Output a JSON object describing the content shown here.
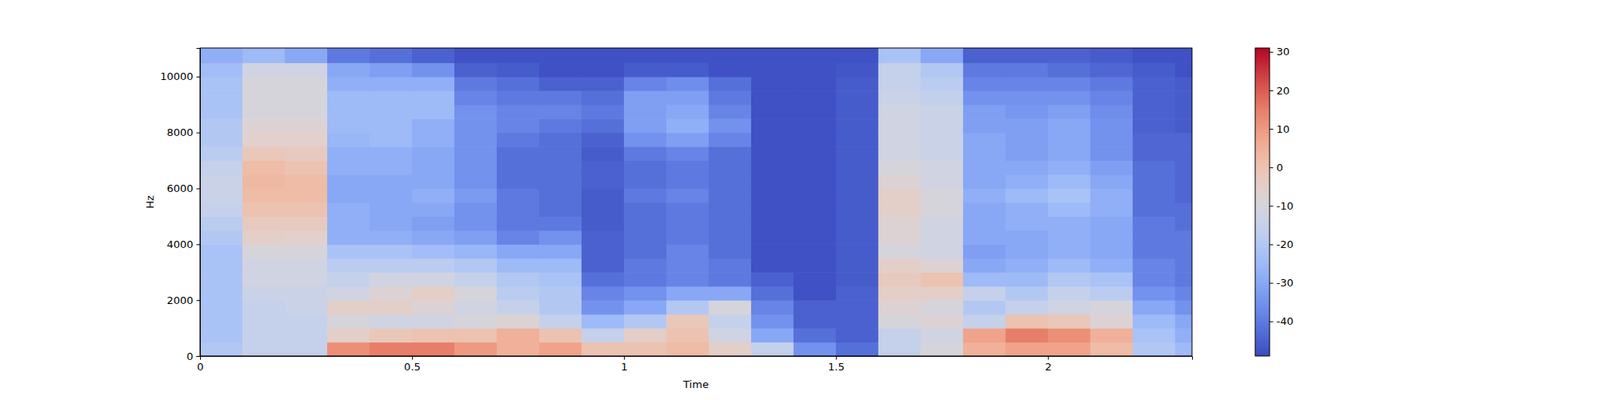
{
  "chart_data": {
    "type": "heatmap",
    "xlabel": "Time",
    "ylabel": "Hz",
    "xlim": [
      0,
      2.34
    ],
    "xticks": [
      0,
      0.5,
      1,
      1.5,
      2
    ],
    "ylim": [
      0,
      11025
    ],
    "yticks": [
      0,
      2000,
      4000,
      6000,
      8000,
      10000
    ],
    "x_edges": [
      0,
      0.1,
      0.2,
      0.3,
      0.4,
      0.5,
      0.6,
      0.7,
      0.8,
      0.9,
      1,
      1.1,
      1.2,
      1.3,
      1.4,
      1.5,
      1.6,
      1.7,
      1.8,
      1.9,
      2,
      2.1,
      2.2,
      2.3,
      2.34
    ],
    "y_edges": [
      0,
      500,
      1000,
      1500,
      2000,
      2500,
      3000,
      3500,
      4000,
      4500,
      5000,
      5500,
      6000,
      6500,
      7000,
      7500,
      8000,
      8500,
      9000,
      9500,
      10000,
      10500,
      11025
    ],
    "z": [
      [
        -20,
        -22,
        -22,
        -22,
        -22,
        -22,
        -22,
        -22,
        -20,
        -18,
        -15,
        -14,
        -14,
        -15,
        -18,
        -20,
        -20,
        -22,
        -22,
        -22,
        -24,
        -28
      ],
      [
        -15,
        -15,
        -15,
        -15,
        -14,
        -12,
        -12,
        -10,
        -5,
        -3,
        0,
        2,
        3,
        2,
        -2,
        -6,
        -8,
        -10,
        -10,
        -10,
        -12,
        -25
      ],
      [
        -15,
        -15,
        -15,
        -14,
        -14,
        -12,
        -12,
        -10,
        -6,
        -3,
        0,
        2,
        2,
        0,
        -3,
        -6,
        -8,
        -10,
        -10,
        -10,
        -12,
        -30
      ],
      [
        12,
        -5,
        -10,
        -5,
        -12,
        -15,
        -18,
        -22,
        -28,
        -28,
        -28,
        -30,
        -30,
        -28,
        -28,
        -26,
        -25,
        -25,
        -25,
        -28,
        -30,
        -40
      ],
      [
        15,
        -2,
        -12,
        -5,
        -8,
        -12,
        -18,
        -22,
        -28,
        -30,
        -30,
        -30,
        -30,
        -28,
        -28,
        -25,
        -25,
        -25,
        -25,
        -28,
        -32,
        -42
      ],
      [
        15,
        0,
        -12,
        -8,
        -5,
        -12,
        -18,
        -24,
        -30,
        -32,
        -30,
        -28,
        -30,
        -30,
        -30,
        -28,
        -28,
        -25,
        -25,
        -28,
        -35,
        -45
      ],
      [
        10,
        0,
        -10,
        -12,
        -10,
        -15,
        -20,
        -26,
        -32,
        -35,
        -35,
        -33,
        -35,
        -35,
        -35,
        -35,
        -35,
        -35,
        -38,
        -40,
        -45,
        -48
      ],
      [
        5,
        5,
        -8,
        -15,
        -18,
        -20,
        -25,
        -30,
        -38,
        -40,
        -40,
        -40,
        -42,
        -42,
        -42,
        -40,
        -38,
        -38,
        -40,
        -42,
        -46,
        -48
      ],
      [
        8,
        0,
        -15,
        -20,
        -20,
        -22,
        -25,
        -30,
        -35,
        -40,
        -42,
        -42,
        -42,
        -42,
        -42,
        -42,
        -40,
        -38,
        -40,
        -45,
        -48,
        -48
      ],
      [
        0,
        -15,
        -25,
        -35,
        -38,
        -42,
        -45,
        -45,
        -45,
        -46,
        -46,
        -46,
        -45,
        -45,
        -46,
        -45,
        -42,
        -40,
        -42,
        -45,
        -48,
        -48
      ],
      [
        0,
        -5,
        -20,
        -30,
        -35,
        -40,
        -40,
        -42,
        -42,
        -42,
        -42,
        -40,
        -42,
        -42,
        -40,
        -35,
        -32,
        -32,
        -32,
        -38,
        -46,
        -48
      ],
      [
        2,
        0,
        -2,
        -20,
        -30,
        -38,
        -38,
        -38,
        -40,
        -40,
        -40,
        -38,
        -40,
        -40,
        -38,
        -32,
        -28,
        -30,
        -32,
        -36,
        -46,
        -48
      ],
      [
        -5,
        -12,
        -15,
        -10,
        -30,
        -40,
        -40,
        -42,
        -42,
        -42,
        -42,
        -42,
        -42,
        -42,
        -42,
        -38,
        -35,
        -38,
        -40,
        -42,
        -48,
        -48
      ],
      [
        -15,
        -30,
        -35,
        -38,
        -42,
        -45,
        -48,
        -48,
        -48,
        -48,
        -48,
        -48,
        -48,
        -48,
        -48,
        -48,
        -48,
        -48,
        -48,
        -48,
        -48,
        -48
      ],
      [
        -35,
        -42,
        -45,
        -45,
        -48,
        -48,
        -48,
        -48,
        -48,
        -48,
        -48,
        -48,
        -48,
        -48,
        -48,
        -48,
        -48,
        -48,
        -48,
        -48,
        -48,
        -48
      ],
      [
        -42,
        -45,
        -45,
        -45,
        -45,
        -46,
        -46,
        -46,
        -46,
        -46,
        -46,
        -46,
        -46,
        -46,
        -46,
        -46,
        -46,
        -46,
        -46,
        -46,
        -47,
        -48
      ],
      [
        -15,
        -15,
        -10,
        -8,
        -5,
        -3,
        -5,
        -10,
        -8,
        -8,
        -5,
        -5,
        -8,
        -10,
        -12,
        -12,
        -12,
        -12,
        -14,
        -15,
        -15,
        -22
      ],
      [
        -10,
        -12,
        -8,
        -10,
        -5,
        0,
        -8,
        -12,
        -12,
        -12,
        -10,
        -10,
        -12,
        -12,
        -14,
        -14,
        -14,
        -14,
        -16,
        -18,
        -20,
        -30
      ],
      [
        5,
        8,
        -15,
        -20,
        -15,
        -25,
        -30,
        -32,
        -30,
        -30,
        -30,
        -28,
        -30,
        -30,
        -30,
        -30,
        -32,
        -32,
        -35,
        -38,
        -40,
        -45
      ],
      [
        8,
        15,
        0,
        -15,
        -20,
        -25,
        -28,
        -30,
        -30,
        -28,
        -28,
        -25,
        -28,
        -30,
        -32,
        -32,
        -32,
        -34,
        -35,
        -38,
        -40,
        -45
      ],
      [
        8,
        12,
        -2,
        -12,
        -15,
        -20,
        -25,
        -28,
        -28,
        -28,
        -25,
        -22,
        -25,
        -28,
        -30,
        -30,
        -30,
        -32,
        -35,
        -38,
        -42,
        -45
      ],
      [
        2,
        5,
        -8,
        -10,
        -18,
        -22,
        -28,
        -30,
        -30,
        -30,
        -28,
        -28,
        -30,
        -32,
        -35,
        -35,
        -35,
        -36,
        -38,
        -40,
        -44,
        -46
      ],
      [
        -20,
        -22,
        -25,
        -30,
        -35,
        -38,
        -38,
        -40,
        -40,
        -40,
        -42,
        -42,
        -42,
        -42,
        -44,
        -44,
        -45,
        -45,
        -45,
        -45,
        -46,
        -48
      ],
      [
        -25,
        -28,
        -30,
        -35,
        -38,
        -40,
        -40,
        -40,
        -40,
        -42,
        -42,
        -44,
        -44,
        -44,
        -44,
        -44,
        -46,
        -46,
        -46,
        -46,
        -48,
        -48
      ]
    ],
    "clim": [
      -49,
      31
    ],
    "cticks": [
      -40,
      -30,
      -20,
      -10,
      0,
      10,
      20,
      30
    ]
  }
}
